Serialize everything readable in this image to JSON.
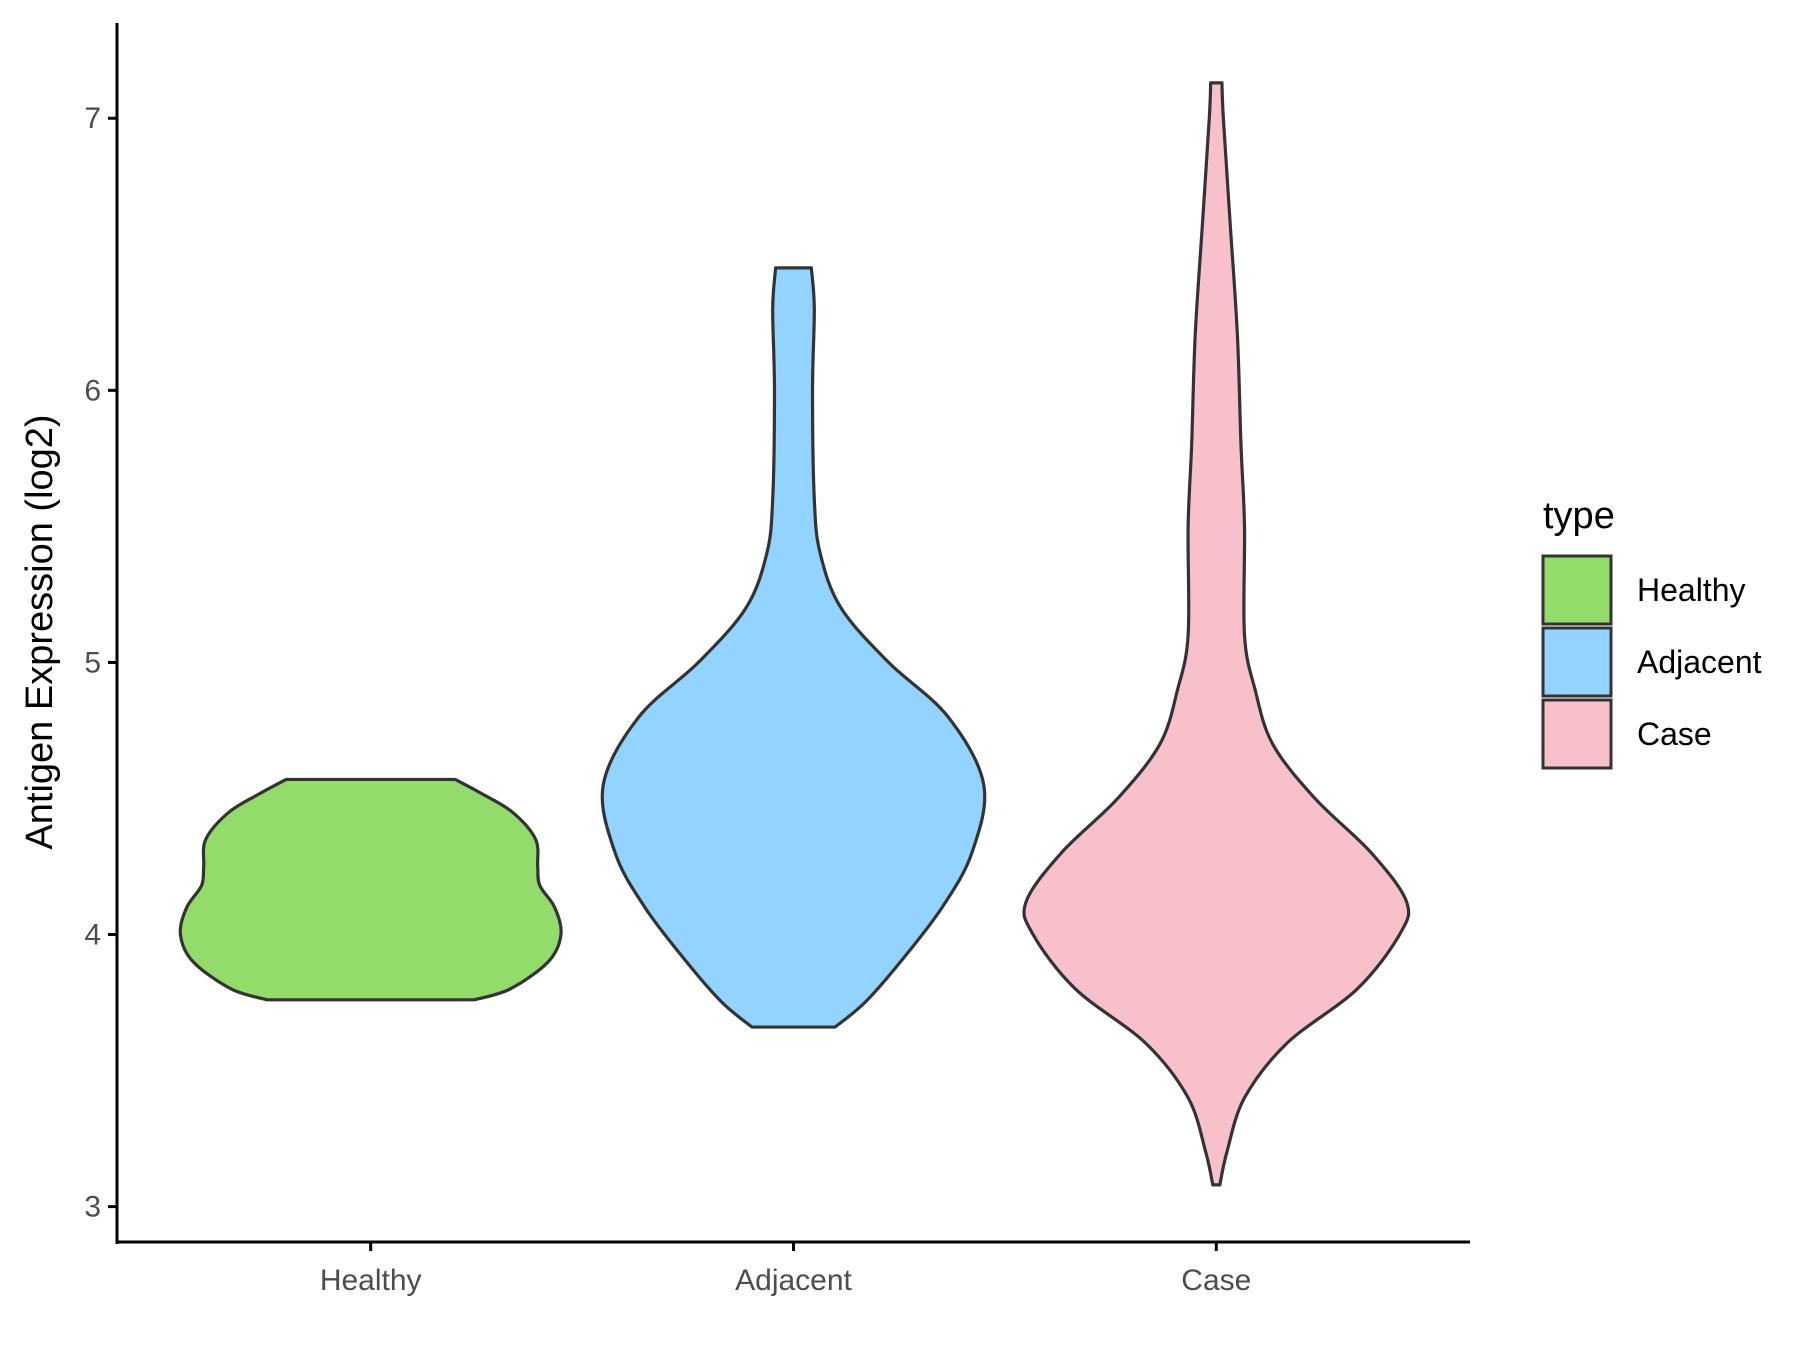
{
  "chart_data": {
    "type": "violin",
    "title": "",
    "xlabel": "",
    "ylabel": "Antigen Expression (log2)",
    "ylim": [
      2.87,
      7.35
    ],
    "yticks": [
      3,
      4,
      5,
      6,
      7
    ],
    "categories": [
      "Healthy",
      "Adjacent",
      "Case"
    ],
    "grid": false,
    "legend": {
      "title": "type",
      "position": "right",
      "entries": [
        "Healthy",
        "Adjacent",
        "Case"
      ]
    },
    "series": [
      {
        "name": "Healthy",
        "color": "#93DB6A",
        "min": 3.76,
        "max": 4.57,
        "density": [
          [
            3.76,
            0.49
          ],
          [
            3.8,
            0.66
          ],
          [
            3.9,
            0.84
          ],
          [
            4.0,
            0.9
          ],
          [
            4.1,
            0.87
          ],
          [
            4.18,
            0.8
          ],
          [
            4.25,
            0.79
          ],
          [
            4.35,
            0.78
          ],
          [
            4.45,
            0.67
          ],
          [
            4.52,
            0.52
          ],
          [
            4.57,
            0.4
          ]
        ]
      },
      {
        "name": "Adjacent",
        "color": "#93D3FF",
        "min": 3.66,
        "max": 6.45,
        "density": [
          [
            3.66,
            0.07
          ],
          [
            3.75,
            0.12
          ],
          [
            3.9,
            0.18
          ],
          [
            4.1,
            0.25
          ],
          [
            4.3,
            0.3
          ],
          [
            4.55,
            0.32
          ],
          [
            4.8,
            0.26
          ],
          [
            5.0,
            0.16
          ],
          [
            5.2,
            0.08
          ],
          [
            5.4,
            0.045
          ],
          [
            5.6,
            0.035
          ],
          [
            6.0,
            0.032
          ],
          [
            6.3,
            0.035
          ],
          [
            6.45,
            0.03
          ]
        ]
      },
      {
        "name": "Case",
        "color": "#F8C0CB",
        "min": 3.08,
        "max": 7.13,
        "density": [
          [
            3.08,
            0.005
          ],
          [
            3.2,
            0.015
          ],
          [
            3.4,
            0.04
          ],
          [
            3.6,
            0.1
          ],
          [
            3.8,
            0.2
          ],
          [
            4.0,
            0.26
          ],
          [
            4.12,
            0.27
          ],
          [
            4.3,
            0.22
          ],
          [
            4.5,
            0.14
          ],
          [
            4.7,
            0.08
          ],
          [
            4.9,
            0.055
          ],
          [
            5.1,
            0.04
          ],
          [
            5.5,
            0.04
          ],
          [
            5.8,
            0.035
          ],
          [
            6.2,
            0.03
          ],
          [
            6.6,
            0.02
          ],
          [
            7.0,
            0.01
          ],
          [
            7.13,
            0.008
          ]
        ]
      }
    ]
  }
}
